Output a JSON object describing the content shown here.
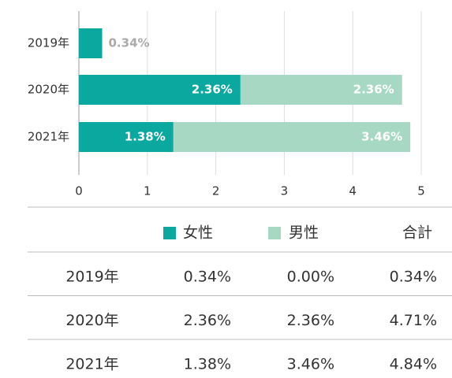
{
  "chart_data": {
    "type": "stacked-barh",
    "categories": [
      "2019年",
      "2020年",
      "2021年"
    ],
    "series": [
      {
        "name": "女性",
        "color": "#0aa89e",
        "values": [
          0.34,
          2.36,
          1.38
        ],
        "value_labels": [
          "0.34%",
          "2.36%",
          "1.38%"
        ]
      },
      {
        "name": "男性",
        "color": "#a7d8c3",
        "values": [
          0,
          2.36,
          3.46
        ],
        "value_labels": [
          null,
          "2.36%",
          "3.46%"
        ]
      }
    ],
    "xlim": [
      0,
      5
    ],
    "xticks": [
      0,
      1,
      2,
      3,
      4,
      5
    ],
    "grid": true
  },
  "table": {
    "total_label": "合計",
    "rows": [
      [
        "2019年",
        "0.34%",
        "0.00%",
        "0.34%"
      ],
      [
        "2020年",
        "2.36%",
        "2.36%",
        "4.71%"
      ],
      [
        "2021年",
        "1.38%",
        "3.46%",
        "4.84%"
      ]
    ]
  }
}
